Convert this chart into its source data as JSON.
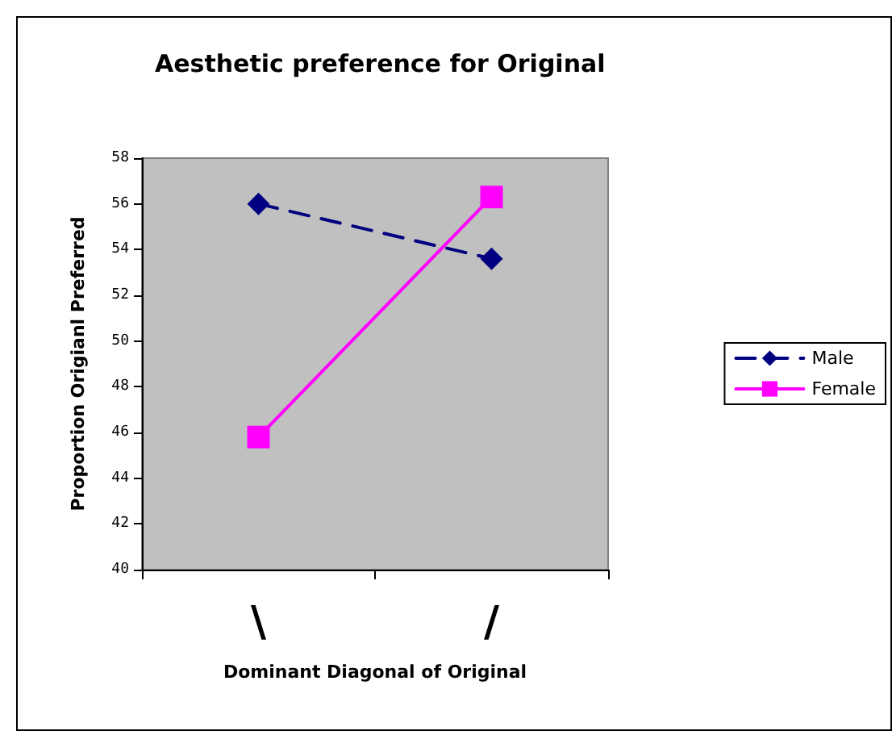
{
  "chart_data": {
    "type": "line",
    "title": "Aesthetic preference for Original",
    "xlabel": "Dominant Diagonal of Original",
    "ylabel": "Proportion Origianl Preferred",
    "categories": [
      "\\",
      "/"
    ],
    "series": [
      {
        "name": "Male",
        "color": "#000080",
        "values": [
          56.0,
          53.6
        ],
        "marker": "diamond",
        "line_style": "dashed"
      },
      {
        "name": "Female",
        "color": "#ff00ff",
        "values": [
          45.8,
          56.3
        ],
        "marker": "square",
        "line_style": "solid"
      }
    ],
    "ylim": [
      40,
      58
    ],
    "yticks": [
      40,
      42,
      44,
      46,
      48,
      50,
      52,
      54,
      56,
      58
    ],
    "grid": false,
    "legend": "right"
  }
}
